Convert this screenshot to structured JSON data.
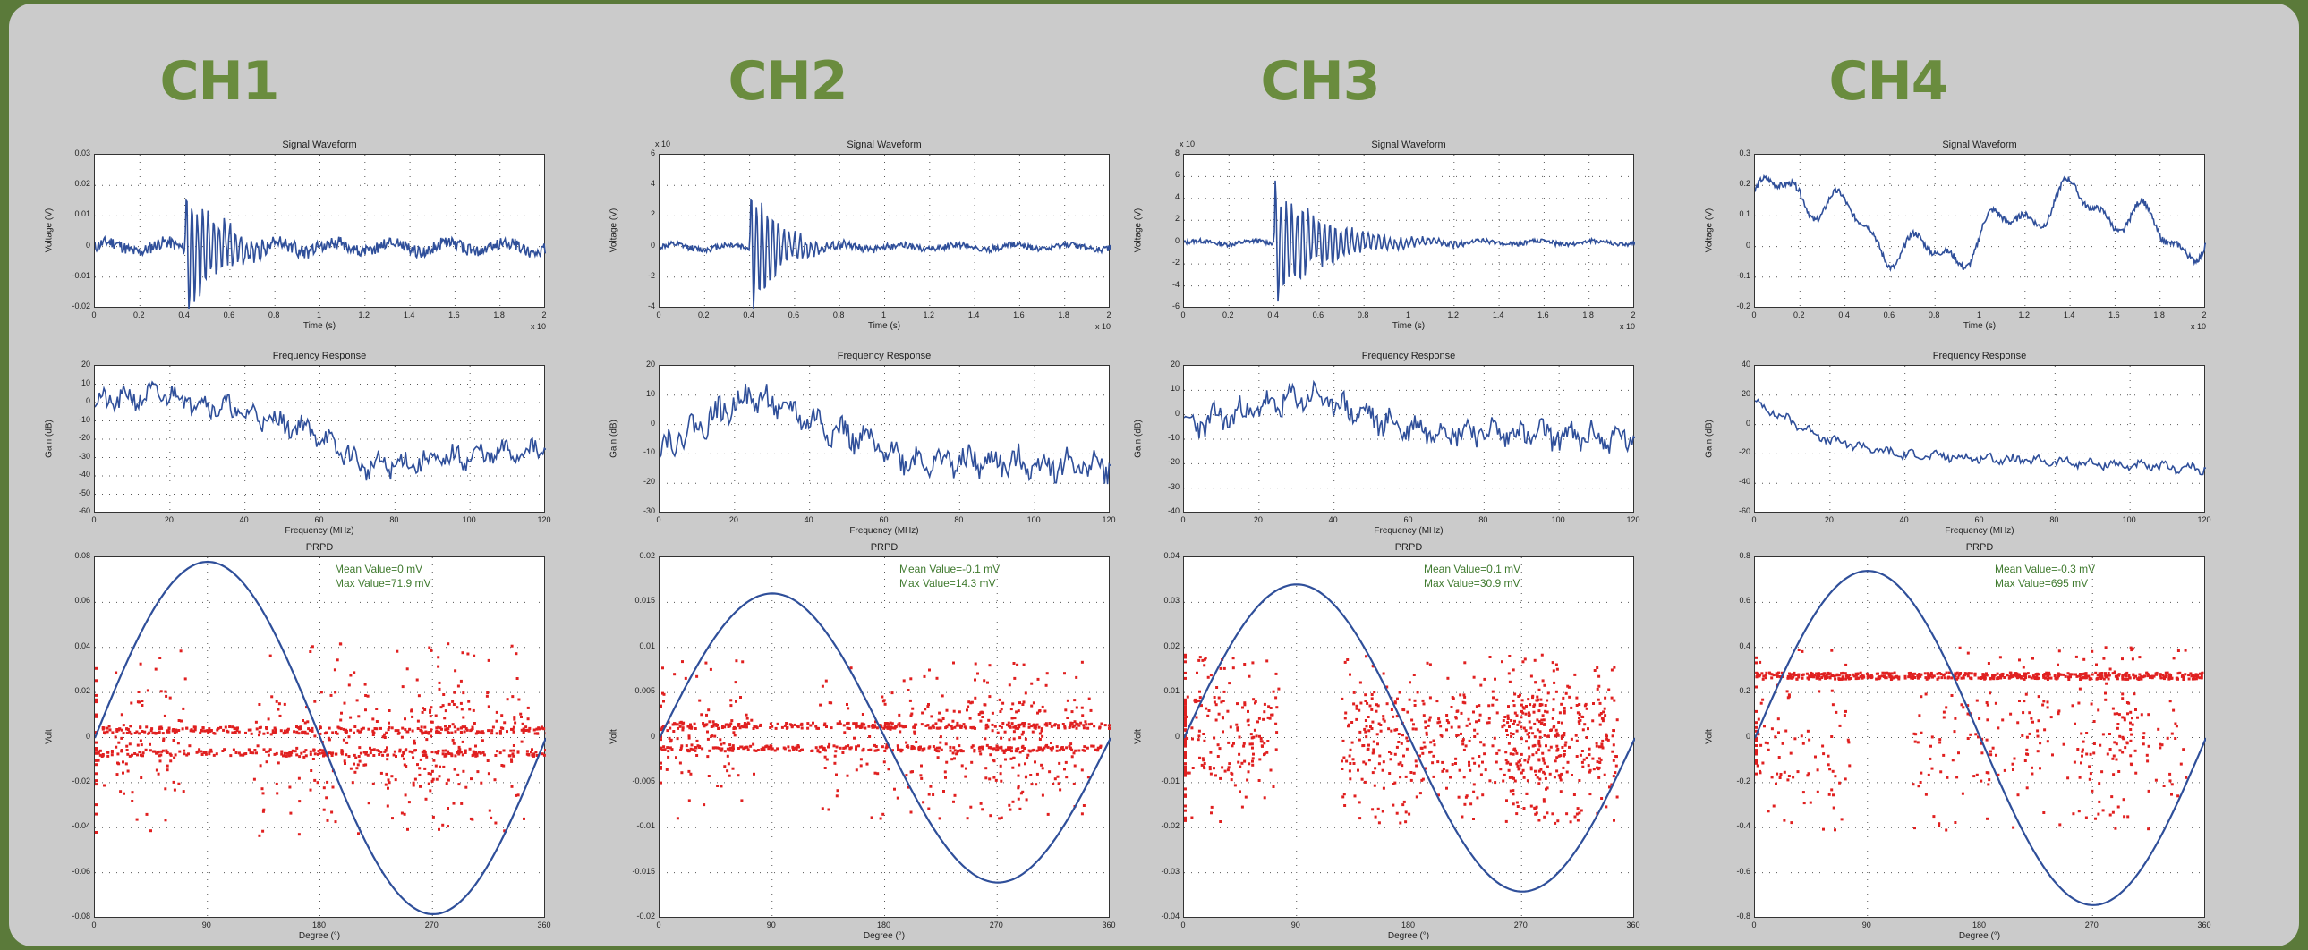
{
  "chart_data": [
    {
      "channel": "CH1",
      "waveform": {
        "type": "line",
        "title": "Signal Waveform",
        "xlabel": "Time (s)",
        "ylabel": "Voltage (V)",
        "x_multiplier": "x 10",
        "xlim": [
          0,
          2
        ],
        "ylim": [
          -0.02,
          0.03
        ],
        "xticks": [
          "0",
          "0.2",
          "0.4",
          "0.6",
          "0.8",
          "1",
          "1.2",
          "1.4",
          "1.6",
          "1.8",
          "2"
        ],
        "yticks": [
          "0.03",
          "0.02",
          "0.01",
          "0",
          "-0.01",
          "-0.02"
        ],
        "burst_at": 0.4,
        "peak": 0.026,
        "noise": 0.004,
        "decay": 0.15,
        "seed": 11
      },
      "frequency": {
        "type": "line",
        "title": "Frequency Response",
        "xlabel": "Frequency (MHz)",
        "ylabel": "Gain (dB)",
        "xlim": [
          0,
          125
        ],
        "ylim": [
          -60,
          20
        ],
        "xticks": [
          "0",
          "20",
          "40",
          "60",
          "80",
          "100",
          "120"
        ],
        "yticks": [
          "20",
          "10",
          "0",
          "-10",
          "-20",
          "-30",
          "-40",
          "-50",
          "-60"
        ],
        "trend": [
          [
            0,
            0
          ],
          [
            20,
            5
          ],
          [
            60,
            -15
          ],
          [
            75,
            -35
          ],
          [
            125,
            -25
          ]
        ],
        "jitter": 10,
        "seed": 21
      },
      "prpd": {
        "type": "scatter",
        "title": "PRPD",
        "xlabel": "Degree (°)",
        "ylabel": "Volt",
        "xlim": [
          0,
          360
        ],
        "ylim": [
          -0.08,
          0.08
        ],
        "xticks": [
          "0",
          "90",
          "180",
          "270",
          "360"
        ],
        "yticks": [
          "0.08",
          "0.06",
          "0.04",
          "0.02",
          "0",
          "-0.02",
          "-0.04",
          "-0.06",
          "-0.08"
        ],
        "sine_amplitude": 0.078,
        "bands": [
          0.004,
          -0.006
        ],
        "mean_value": "Mean Value=0 mV",
        "max_value": "Max Value=71.9 mV",
        "seed": 31
      }
    },
    {
      "channel": "CH2",
      "waveform": {
        "type": "line",
        "title": "Signal Waveform",
        "xlabel": "Time (s)",
        "ylabel": "Voltage (V)",
        "x_multiplier": "x 10",
        "xlim": [
          0,
          2
        ],
        "ylim": [
          -4,
          6
        ],
        "xticks": [
          "0",
          "0.2",
          "0.4",
          "0.6",
          "0.8",
          "1",
          "1.2",
          "1.4",
          "1.6",
          "1.8",
          "2"
        ],
        "yticks": [
          "6",
          "4",
          "2",
          "0",
          "-2",
          "-4"
        ],
        "y_multiplier": "x 10",
        "burst_at": 0.4,
        "peak": 5.2,
        "noise": 0.4,
        "decay": 0.12,
        "seed": 12
      },
      "frequency": {
        "type": "line",
        "title": "Frequency Response",
        "xlabel": "Frequency (MHz)",
        "ylabel": "Gain (dB)",
        "xlim": [
          0,
          125
        ],
        "ylim": [
          -30,
          20
        ],
        "xticks": [
          "0",
          "20",
          "40",
          "60",
          "80",
          "100",
          "120"
        ],
        "yticks": [
          "20",
          "10",
          "0",
          "-10",
          "-20",
          "-30"
        ],
        "trend": [
          [
            0,
            -8
          ],
          [
            25,
            10
          ],
          [
            45,
            0
          ],
          [
            70,
            -12
          ],
          [
            125,
            -14
          ]
        ],
        "jitter": 8,
        "seed": 22
      },
      "prpd": {
        "type": "scatter",
        "title": "PRPD",
        "xlabel": "Degree (°)",
        "ylabel": "Volt",
        "xlim": [
          0,
          360
        ],
        "ylim": [
          -0.02,
          0.02
        ],
        "xticks": [
          "0",
          "90",
          "180",
          "270",
          "360"
        ],
        "yticks": [
          "0.02",
          "0.015",
          "0.01",
          "0.005",
          "0",
          "-0.005",
          "-0.01",
          "-0.015",
          "-0.02"
        ],
        "sine_amplitude": 0.016,
        "bands": [
          0.0015,
          -0.001
        ],
        "mean_value": "Mean Value=-0.1 mV",
        "max_value": "Max Value=14.3 mV",
        "seed": 32
      }
    },
    {
      "channel": "CH3",
      "waveform": {
        "type": "line",
        "title": "Signal Waveform",
        "xlabel": "Time (s)",
        "ylabel": "Voltage (V)",
        "x_multiplier": "x 10",
        "xlim": [
          0,
          2
        ],
        "ylim": [
          -6,
          8
        ],
        "xticks": [
          "0",
          "0.2",
          "0.4",
          "0.6",
          "0.8",
          "1",
          "1.2",
          "1.4",
          "1.6",
          "1.8",
          "2"
        ],
        "yticks": [
          "8",
          "6",
          "4",
          "2",
          "0",
          "-2",
          "-4",
          "-6"
        ],
        "y_multiplier": "x 10",
        "burst_at": 0.4,
        "peak": 6.5,
        "noise": 0.4,
        "decay": 0.22,
        "seed": 13
      },
      "frequency": {
        "type": "line",
        "title": "Frequency Response",
        "xlabel": "Frequency (MHz)",
        "ylabel": "Gain (dB)",
        "xlim": [
          0,
          125
        ],
        "ylim": [
          -40,
          20
        ],
        "xticks": [
          "0",
          "20",
          "40",
          "60",
          "80",
          "100",
          "120"
        ],
        "yticks": [
          "20",
          "10",
          "0",
          "-10",
          "-20",
          "-30",
          "-40"
        ],
        "trend": [
          [
            0,
            -5
          ],
          [
            35,
            8
          ],
          [
            60,
            -5
          ],
          [
            125,
            -10
          ]
        ],
        "jitter": 9,
        "seed": 23
      },
      "prpd": {
        "type": "scatter",
        "title": "PRPD",
        "xlabel": "Degree (°)",
        "ylabel": "Volt",
        "xlim": [
          0,
          360
        ],
        "ylim": [
          -0.04,
          0.04
        ],
        "xticks": [
          "0",
          "90",
          "180",
          "270",
          "360"
        ],
        "yticks": [
          "0.04",
          "0.03",
          "0.02",
          "0.01",
          "0",
          "-0.01",
          "-0.02",
          "-0.03",
          "-0.04"
        ],
        "sine_amplitude": 0.034,
        "bands": [],
        "mean_value": "Mean Value=0.1 mV",
        "max_value": "Max Value=30.9 mV",
        "seed": 33
      }
    },
    {
      "channel": "CH4",
      "waveform": {
        "type": "line",
        "title": "Signal Waveform",
        "xlabel": "Time (s)",
        "ylabel": "Voltage (V)",
        "x_multiplier": "x 10",
        "xlim": [
          0,
          2
        ],
        "ylim": [
          -0.2,
          0.3
        ],
        "xticks": [
          "0",
          "0.2",
          "0.4",
          "0.6",
          "0.8",
          "1",
          "1.2",
          "1.4",
          "1.6",
          "1.8",
          "2"
        ],
        "yticks": [
          "0.3",
          "0.2",
          "0.1",
          "0",
          "-0.1",
          "-0.2"
        ],
        "smooth": true,
        "seed": 14
      },
      "frequency": {
        "type": "line",
        "title": "Frequency Response",
        "xlabel": "Frequency (MHz)",
        "ylabel": "Gain (dB)",
        "xlim": [
          0,
          125
        ],
        "ylim": [
          -60,
          40
        ],
        "xticks": [
          "0",
          "20",
          "40",
          "60",
          "80",
          "100",
          "120"
        ],
        "yticks": [
          "40",
          "20",
          "0",
          "-20",
          "-40",
          "-60"
        ],
        "trend": [
          [
            0,
            15
          ],
          [
            20,
            -10
          ],
          [
            40,
            -20
          ],
          [
            125,
            -30
          ]
        ],
        "jitter": 5,
        "seed": 24
      },
      "prpd": {
        "type": "scatter",
        "title": "PRPD",
        "xlabel": "Degree (°)",
        "ylabel": "Volt",
        "xlim": [
          0,
          360
        ],
        "ylim": [
          -0.8,
          0.8
        ],
        "xticks": [
          "0",
          "90",
          "180",
          "270",
          "360"
        ],
        "yticks": [
          "0.8",
          "0.6",
          "0.4",
          "0.2",
          "0",
          "-0.2",
          "-0.4",
          "-0.6",
          "-0.8"
        ],
        "sine_amplitude": 0.74,
        "bands": [
          0.28
        ],
        "mean_value": "Mean Value=-0.3 mV",
        "max_value": "Max Value=695 mV",
        "seed": 34
      }
    }
  ],
  "colors": {
    "line": "#2f4f9a",
    "scatter": "#e02020",
    "title": "#6a8c3e",
    "annotation": "#3f7a2e",
    "panel": "#cbcbcb",
    "frame": "#5b7a3a"
  }
}
